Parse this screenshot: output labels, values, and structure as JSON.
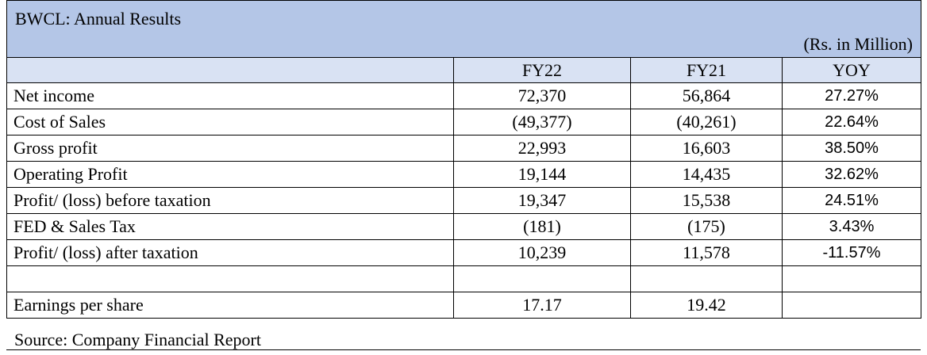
{
  "title": "BWCL: Annual Results",
  "unit": "(Rs. in Million)",
  "header": {
    "columns": [
      "FY22",
      "FY21",
      "YOY"
    ]
  },
  "rows": [
    {
      "label": "Net income",
      "values": [
        "72,370",
        "56,864",
        "27.27%"
      ]
    },
    {
      "label": "Cost of Sales",
      "values": [
        "(49,377)",
        "(40,261)",
        "22.64%"
      ]
    },
    {
      "label": "Gross profit",
      "values": [
        "22,993",
        "16,603",
        "38.50%"
      ]
    },
    {
      "label": "Operating Profit",
      "values": [
        "19,144",
        "14,435",
        "32.62%"
      ]
    },
    {
      "label": "Profit/ (loss) before taxation",
      "values": [
        "19,347",
        "15,538",
        "24.51%"
      ]
    },
    {
      "label": "FED & Sales Tax",
      "values": [
        "(181)",
        "(175)",
        "3.43%"
      ]
    },
    {
      "label": "Profit/ (loss) after taxation",
      "values": [
        "10,239",
        "11,578",
        "-11.57%"
      ]
    },
    {
      "label": "Earnings per share",
      "values": [
        "17.17",
        "19.42"
      ]
    }
  ],
  "source": "Source: Company Financial Report"
}
